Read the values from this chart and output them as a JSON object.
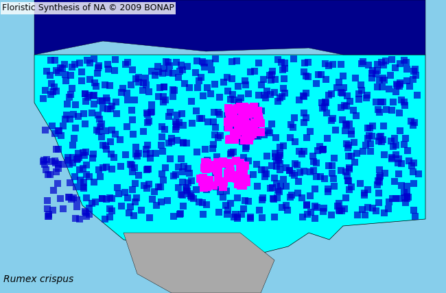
{
  "title": "Floristic Synthesis of NA © 2009 BONAP",
  "species_label": "Rumex crispus",
  "background_color": "#87CEEB",
  "map_colors": {
    "cyan": "#00FFFF",
    "dark_blue": "#0000CD",
    "magenta": "#FF00FF",
    "gray": "#A9A9A9",
    "water": "#87CEEB",
    "canada_dark": "#00008B"
  },
  "title_fontsize": 9,
  "label_fontsize": 10,
  "figsize": [
    6.5,
    4.28
  ],
  "dpi": 100
}
